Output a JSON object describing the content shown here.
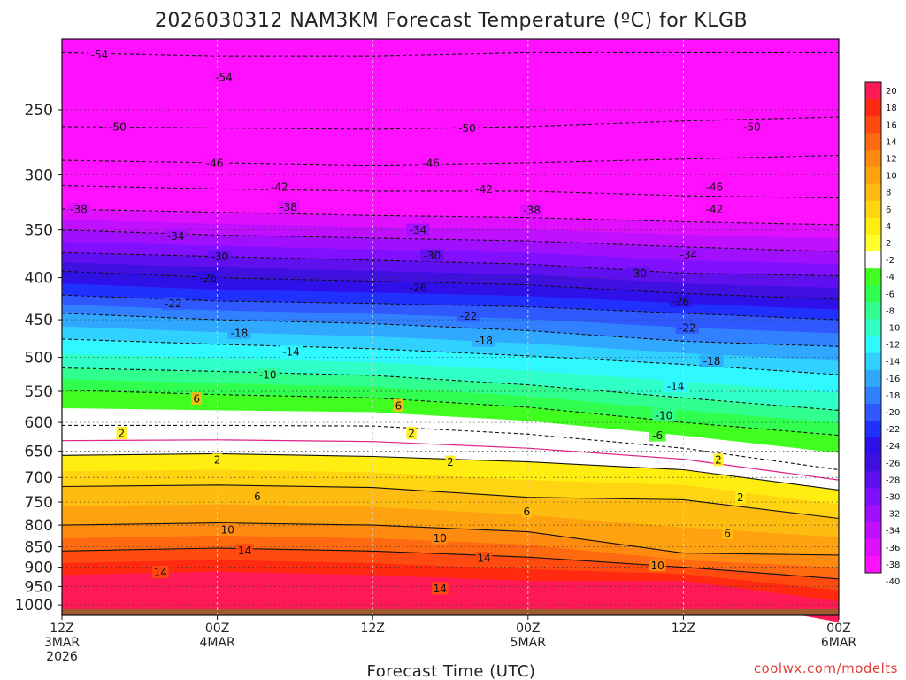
{
  "chart_data": {
    "type": "heatmap",
    "title": "2026030312 NAM3KM Forecast Temperature (ºC) for KLGB",
    "xlabel": "Forecast Time (UTC)",
    "ylabel": "",
    "credit": "coolwx.com/modelts",
    "y_axis": {
      "scale": "log",
      "inverted": true,
      "range": [
        1030,
        205
      ],
      "ticks": [
        250,
        300,
        350,
        400,
        450,
        500,
        550,
        600,
        650,
        700,
        750,
        800,
        850,
        900,
        950,
        1000
      ]
    },
    "x_axis": {
      "range_hours": [
        0,
        60
      ],
      "ticks": [
        {
          "hour": 0,
          "lines": [
            "12Z",
            "3MAR",
            "2026"
          ]
        },
        {
          "hour": 12,
          "lines": [
            "00Z",
            "4MAR"
          ]
        },
        {
          "hour": 24,
          "lines": [
            "12Z"
          ]
        },
        {
          "hour": 36,
          "lines": [
            "00Z",
            "5MAR"
          ]
        },
        {
          "hour": 48,
          "lines": [
            "12Z"
          ]
        },
        {
          "hour": 60,
          "lines": [
            "00Z",
            "6MAR"
          ]
        }
      ]
    },
    "colorbar": {
      "labels": [
        20,
        18,
        16,
        14,
        12,
        10,
        8,
        6,
        4,
        2,
        -2,
        -4,
        -6,
        -8,
        -10,
        -12,
        -14,
        -16,
        -18,
        -20,
        -22,
        -24,
        -26,
        -28,
        -30,
        -32,
        -34,
        -36,
        -38,
        -40
      ],
      "colors": [
        "#ff1a55",
        "#ff2a10",
        "#ff4a10",
        "#ff6a10",
        "#ff8a10",
        "#ffa210",
        "#ffbc10",
        "#ffd410",
        "#ffee10",
        "#ffff30",
        "#ffffff",
        "#40ff20",
        "#30ff50",
        "#30ff90",
        "#30ffc8",
        "#30f8ff",
        "#30d0ff",
        "#30a8ff",
        "#3080ff",
        "#3058ff",
        "#2030ff",
        "#3010e8",
        "#4010e0",
        "#6010f0",
        "#8010ff",
        "#a010ff",
        "#c010ff",
        "#e010ff",
        "#ff10ff"
      ]
    },
    "surface_color": "#a05a30",
    "isotherms_pressure_at_hours": [
      0,
      12,
      24,
      36,
      48,
      60
    ],
    "isotherms": [
      {
        "temp": -54,
        "pressure": [
          213,
          215,
          215,
          213,
          213,
          213
        ]
      },
      {
        "temp": -50,
        "pressure": [
          262,
          263,
          264,
          262,
          258,
          255
        ]
      },
      {
        "temp": -46,
        "pressure": [
          288,
          290,
          292,
          290,
          287,
          284
        ]
      },
      {
        "temp": -42,
        "pressure": [
          309,
          312,
          314,
          314,
          318,
          320
        ]
      },
      {
        "temp": -38,
        "pressure": [
          330,
          333,
          336,
          338,
          342,
          345
        ]
      },
      {
        "temp": -34,
        "pressure": [
          350,
          355,
          358,
          361,
          367,
          372
        ]
      },
      {
        "temp": -30,
        "pressure": [
          373,
          377,
          381,
          385,
          395,
          398
        ]
      },
      {
        "temp": -26,
        "pressure": [
          393,
          400,
          404,
          408,
          418,
          425
        ]
      },
      {
        "temp": -22,
        "pressure": [
          420,
          427,
          430,
          434,
          442,
          450
        ]
      },
      {
        "temp": -18,
        "pressure": [
          442,
          450,
          455,
          464,
          478,
          485
        ]
      },
      {
        "temp": -14,
        "pressure": [
          475,
          482,
          488,
          498,
          510,
          525
        ]
      },
      {
        "temp": -10,
        "pressure": [
          515,
          520,
          526,
          540,
          560,
          580
        ]
      },
      {
        "temp": -6,
        "pressure": [
          548,
          555,
          560,
          575,
          600,
          622
        ]
      },
      {
        "temp": -2,
        "pressure": [
          605,
          605,
          606,
          620,
          645,
          685
        ]
      },
      {
        "temp": 2,
        "pressure": [
          658,
          655,
          660,
          670,
          685,
          725
        ]
      },
      {
        "temp": 6,
        "pressure": [
          718,
          715,
          720,
          740,
          745,
          785
        ]
      },
      {
        "temp": 10,
        "pressure": [
          800,
          795,
          800,
          815,
          865,
          870
        ]
      },
      {
        "temp": 14,
        "pressure": [
          860,
          853,
          860,
          875,
          900,
          930
        ]
      }
    ],
    "labels": [
      {
        "text": "-54",
        "hour": 2.9,
        "pressure": 214
      },
      {
        "temp": -54,
        "text": "-54",
        "hour": 12.5,
        "pressure": 228
      },
      {
        "text": "-50",
        "hour": 4.3,
        "pressure": 262
      },
      {
        "text": "-50",
        "hour": 31.3,
        "pressure": 263
      },
      {
        "text": "-50",
        "hour": 53.3,
        "pressure": 262
      },
      {
        "text": "-46",
        "hour": 11.8,
        "pressure": 290
      },
      {
        "text": "-46",
        "hour": 28.5,
        "pressure": 290
      },
      {
        "text": "-46",
        "hour": 50.4,
        "pressure": 310
      },
      {
        "text": "-42",
        "hour": 16.8,
        "pressure": 310
      },
      {
        "text": "-42",
        "hour": 32.6,
        "pressure": 312
      },
      {
        "text": "-42",
        "hour": 50.4,
        "pressure": 330
      },
      {
        "text": "-38",
        "hour": 1.3,
        "pressure": 330
      },
      {
        "text": "-38",
        "hour": 17.5,
        "pressure": 328
      },
      {
        "text": "-38",
        "hour": 36.3,
        "pressure": 331
      },
      {
        "text": "-34",
        "hour": 8.8,
        "pressure": 356
      },
      {
        "text": "-34",
        "hour": 27.5,
        "pressure": 350
      },
      {
        "text": "-34",
        "hour": 48.4,
        "pressure": 375
      },
      {
        "text": "-30",
        "hour": 12.2,
        "pressure": 377
      },
      {
        "text": "-30",
        "hour": 28.6,
        "pressure": 376
      },
      {
        "text": "-30",
        "hour": 44.5,
        "pressure": 395
      },
      {
        "text": "-26",
        "hour": 11.3,
        "pressure": 400
      },
      {
        "text": "-26",
        "hour": 27.5,
        "pressure": 411
      },
      {
        "text": "-26",
        "hour": 47.8,
        "pressure": 427
      },
      {
        "text": "-22",
        "hour": 8.6,
        "pressure": 430
      },
      {
        "text": "-22",
        "hour": 31.4,
        "pressure": 445
      },
      {
        "text": "-22",
        "hour": 48.3,
        "pressure": 460
      },
      {
        "text": "-18",
        "hour": 13.7,
        "pressure": 467
      },
      {
        "text": "-18",
        "hour": 32.6,
        "pressure": 477
      },
      {
        "text": "-18",
        "hour": 50.2,
        "pressure": 505
      },
      {
        "text": "-14",
        "hour": 17.7,
        "pressure": 492
      },
      {
        "text": "-14",
        "hour": 47.4,
        "pressure": 542
      },
      {
        "text": "-10",
        "hour": 15.9,
        "pressure": 525
      },
      {
        "text": "-10",
        "hour": 46.5,
        "pressure": 588
      },
      {
        "text": "6",
        "hour": 10.4,
        "pressure": 561
      },
      {
        "text": "6",
        "hour": 26.0,
        "pressure": 572
      },
      {
        "text": "-6",
        "hour": 46.0,
        "pressure": 622
      },
      {
        "text": "2",
        "hour": 4.6,
        "pressure": 618
      },
      {
        "text": "2",
        "hour": 27.0,
        "pressure": 618
      },
      {
        "text": "2",
        "hour": 12.0,
        "pressure": 666
      },
      {
        "text": "2",
        "hour": 30.0,
        "pressure": 670
      },
      {
        "text": "2",
        "hour": 50.7,
        "pressure": 666
      },
      {
        "text": "2",
        "hour": 52.4,
        "pressure": 740
      },
      {
        "text": "6",
        "hour": 15.1,
        "pressure": 738
      },
      {
        "text": "6",
        "hour": 35.9,
        "pressure": 770
      },
      {
        "text": "6",
        "hour": 51.4,
        "pressure": 818
      },
      {
        "text": "10",
        "hour": 12.8,
        "pressure": 810
      },
      {
        "text": "10",
        "hour": 29.2,
        "pressure": 829
      },
      {
        "text": "10",
        "hour": 46.0,
        "pressure": 895
      },
      {
        "text": "14",
        "hour": 14.1,
        "pressure": 858
      },
      {
        "text": "14",
        "hour": 7.6,
        "pressure": 912
      },
      {
        "text": "14",
        "hour": 32.6,
        "pressure": 877
      },
      {
        "text": "14",
        "hour": 29.2,
        "pressure": 955
      }
    ]
  }
}
